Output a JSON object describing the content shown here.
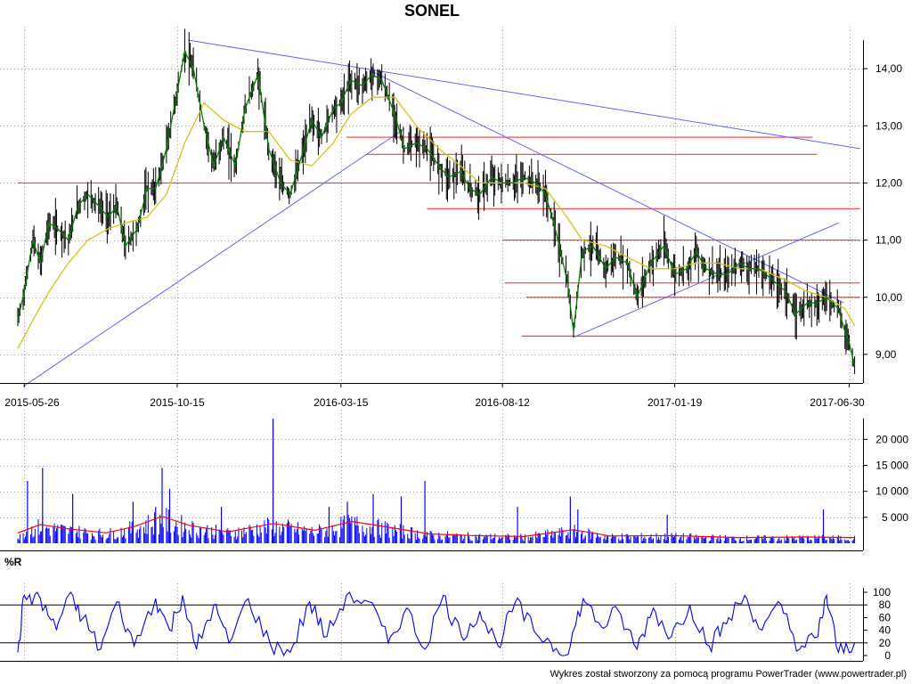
{
  "title": "SONEL",
  "footer": "Wykres został stworzony za pomocą programu PowerTrader (www.powertrader.pl)",
  "chart_data": [
    {
      "type": "line",
      "panel": "price",
      "title": "SONEL",
      "date_labels": [
        "2015-05-26",
        "2015-10-15",
        "2016-03-15",
        "2016-08-12",
        "2017-01-19",
        "2017-06-30"
      ],
      "ylim": [
        8.5,
        14.5
      ],
      "yticks": [
        9,
        10,
        11,
        12,
        13,
        14
      ],
      "ytick_labels": [
        "9,00",
        "10,00",
        "11,00",
        "12,00",
        "13,00",
        "14,00"
      ],
      "grid": true,
      "colors": {
        "price": "#008000",
        "bars": "#000000",
        "ma": "#d4c414",
        "trendlines": "#6464ff",
        "levels": "#ff3c3c"
      },
      "series": [
        {
          "role": "price",
          "points": [
            [
              "2015-05-20",
              9.6
            ],
            [
              "2015-05-26",
              10.1
            ],
            [
              "2015-06-03",
              11.0
            ],
            [
              "2015-06-10",
              10.6
            ],
            [
              "2015-06-18",
              11.3
            ],
            [
              "2015-06-26",
              11.2
            ],
            [
              "2015-07-06",
              11.0
            ],
            [
              "2015-07-15",
              11.6
            ],
            [
              "2015-07-24",
              11.8
            ],
            [
              "2015-08-03",
              11.6
            ],
            [
              "2015-08-12",
              11.4
            ],
            [
              "2015-08-20",
              11.6
            ],
            [
              "2015-08-28",
              10.9
            ],
            [
              "2015-09-08",
              11.2
            ],
            [
              "2015-09-17",
              11.9
            ],
            [
              "2015-09-25",
              11.9
            ],
            [
              "2015-10-05",
              12.6
            ],
            [
              "2015-10-15",
              13.6
            ],
            [
              "2015-10-22",
              14.3
            ],
            [
              "2015-10-30",
              14.0
            ],
            [
              "2015-11-09",
              13.0
            ],
            [
              "2015-11-18",
              12.3
            ],
            [
              "2015-11-27",
              12.8
            ],
            [
              "2015-12-08",
              12.3
            ],
            [
              "2015-12-17",
              13.3
            ],
            [
              "2015-12-29",
              13.9
            ],
            [
              "2016-01-08",
              12.6
            ],
            [
              "2016-01-19",
              12.0
            ],
            [
              "2016-01-28",
              11.8
            ],
            [
              "2016-02-08",
              12.5
            ],
            [
              "2016-02-17",
              13.1
            ],
            [
              "2016-02-26",
              12.8
            ],
            [
              "2016-03-08",
              13.3
            ],
            [
              "2016-03-15",
              13.4
            ],
            [
              "2016-03-24",
              13.8
            ],
            [
              "2016-04-04",
              13.7
            ],
            [
              "2016-04-13",
              13.9
            ],
            [
              "2016-04-22",
              13.8
            ],
            [
              "2016-05-04",
              13.2
            ],
            [
              "2016-05-13",
              12.6
            ],
            [
              "2016-05-24",
              12.7
            ],
            [
              "2016-06-03",
              12.6
            ],
            [
              "2016-06-14",
              12.3
            ],
            [
              "2016-06-23",
              12.1
            ],
            [
              "2016-07-04",
              12.2
            ],
            [
              "2016-07-13",
              11.9
            ],
            [
              "2016-07-22",
              11.8
            ],
            [
              "2016-08-02",
              12.1
            ],
            [
              "2016-08-12",
              12.0
            ],
            [
              "2016-08-22",
              12.0
            ],
            [
              "2016-09-01",
              12.1
            ],
            [
              "2016-09-12",
              12.0
            ],
            [
              "2016-09-21",
              11.8
            ],
            [
              "2016-09-30",
              11.2
            ],
            [
              "2016-10-11",
              10.3
            ],
            [
              "2016-10-17",
              9.4
            ],
            [
              "2016-10-25",
              10.8
            ],
            [
              "2016-11-04",
              10.9
            ],
            [
              "2016-11-16",
              10.5
            ],
            [
              "2016-11-25",
              10.7
            ],
            [
              "2016-12-06",
              10.6
            ],
            [
              "2016-12-15",
              10.0
            ],
            [
              "2016-12-28",
              10.6
            ],
            [
              "2017-01-09",
              10.9
            ],
            [
              "2017-01-19",
              10.4
            ],
            [
              "2017-01-30",
              10.5
            ],
            [
              "2017-02-08",
              10.8
            ],
            [
              "2017-02-17",
              10.5
            ],
            [
              "2017-02-28",
              10.4
            ],
            [
              "2017-03-09",
              10.4
            ],
            [
              "2017-03-20",
              10.6
            ],
            [
              "2017-03-29",
              10.5
            ],
            [
              "2017-04-07",
              10.5
            ],
            [
              "2017-04-20",
              10.3
            ],
            [
              "2017-05-02",
              10.1
            ],
            [
              "2017-05-11",
              9.7
            ],
            [
              "2017-05-22",
              9.9
            ],
            [
              "2017-05-31",
              9.9
            ],
            [
              "2017-06-09",
              10.0
            ],
            [
              "2017-06-20",
              9.8
            ],
            [
              "2017-06-26",
              9.4
            ],
            [
              "2017-06-30",
              9.2
            ],
            [
              "2017-07-05",
              8.8
            ]
          ]
        },
        {
          "role": "moving-average",
          "points": [
            [
              "2015-05-20",
              9.1
            ],
            [
              "2015-06-03",
              9.6
            ],
            [
              "2015-06-18",
              10.1
            ],
            [
              "2015-07-06",
              10.6
            ],
            [
              "2015-07-24",
              11.0
            ],
            [
              "2015-08-12",
              11.2
            ],
            [
              "2015-08-28",
              11.3
            ],
            [
              "2015-09-17",
              11.4
            ],
            [
              "2015-10-05",
              11.8
            ],
            [
              "2015-10-22",
              12.7
            ],
            [
              "2015-11-09",
              13.4
            ],
            [
              "2015-11-27",
              13.1
            ],
            [
              "2015-12-17",
              12.9
            ],
            [
              "2016-01-08",
              12.9
            ],
            [
              "2016-01-28",
              12.4
            ],
            [
              "2016-02-17",
              12.3
            ],
            [
              "2016-03-08",
              12.7
            ],
            [
              "2016-03-24",
              13.2
            ],
            [
              "2016-04-13",
              13.5
            ],
            [
              "2016-05-04",
              13.5
            ],
            [
              "2016-05-24",
              13.0
            ],
            [
              "2016-06-14",
              12.6
            ],
            [
              "2016-07-04",
              12.3
            ],
            [
              "2016-07-22",
              12.0
            ],
            [
              "2016-08-12",
              12.0
            ],
            [
              "2016-09-01",
              12.0
            ],
            [
              "2016-09-21",
              11.9
            ],
            [
              "2016-10-11",
              11.4
            ],
            [
              "2016-10-25",
              11.0
            ],
            [
              "2016-11-16",
              10.9
            ],
            [
              "2016-12-06",
              10.7
            ],
            [
              "2016-12-28",
              10.5
            ],
            [
              "2017-01-19",
              10.5
            ],
            [
              "2017-02-08",
              10.6
            ],
            [
              "2017-02-28",
              10.6
            ],
            [
              "2017-03-20",
              10.5
            ],
            [
              "2017-04-07",
              10.5
            ],
            [
              "2017-05-02",
              10.3
            ],
            [
              "2017-05-22",
              10.1
            ],
            [
              "2017-06-09",
              10.0
            ],
            [
              "2017-06-26",
              9.8
            ],
            [
              "2017-07-05",
              9.5
            ]
          ]
        }
      ],
      "trendlines": [
        {
          "from": [
            "2015-05-26",
            8.45
          ],
          "to": [
            "2016-05-13",
            12.95
          ]
        },
        {
          "from": [
            "2015-10-25",
            14.5
          ],
          "to": [
            "2017-07-10",
            12.6
          ]
        },
        {
          "from": [
            "2016-04-13",
            13.95
          ],
          "to": [
            "2017-06-25",
            9.9
          ]
        },
        {
          "from": [
            "2016-10-17",
            9.3
          ],
          "to": [
            "2017-06-20",
            11.3
          ]
        }
      ],
      "levels": [
        {
          "value": 12.0,
          "from": "2015-05-20",
          "to": "2017-07-10"
        },
        {
          "value": 12.8,
          "from": "2016-03-20",
          "to": "2017-05-27"
        },
        {
          "value": 12.5,
          "from": "2016-04-08",
          "to": "2017-05-31"
        },
        {
          "value": 11.55,
          "from": "2016-06-03",
          "to": "2017-07-10"
        },
        {
          "value": 11.0,
          "from": "2016-08-12",
          "to": "2017-07-10"
        },
        {
          "value": 10.25,
          "from": "2016-08-14",
          "to": "2017-07-10"
        },
        {
          "value": 10.0,
          "from": "2016-09-03",
          "to": "2017-07-10"
        },
        {
          "value": 9.32,
          "from": "2016-08-30",
          "to": "2017-06-30"
        }
      ]
    },
    {
      "type": "bar",
      "panel": "volume",
      "ylim": [
        0,
        24000
      ],
      "yticks": [
        5000,
        10000,
        15000,
        20000
      ],
      "ytick_labels": [
        "5 000",
        "10 000",
        "15 000",
        "20 000"
      ],
      "colors": {
        "bars": "#0000ff",
        "avg": "#ff0000"
      },
      "spikes": [
        [
          "2015-05-29",
          12000
        ],
        [
          "2015-06-12",
          14500
        ],
        [
          "2015-07-10",
          9500
        ],
        [
          "2015-09-04",
          8000
        ],
        [
          "2015-09-25",
          7000
        ],
        [
          "2015-10-01",
          14500
        ],
        [
          "2015-10-08",
          10500
        ],
        [
          "2015-11-25",
          7000
        ],
        [
          "2016-01-12",
          24000
        ],
        [
          "2016-03-04",
          7000
        ],
        [
          "2016-03-21",
          8000
        ],
        [
          "2016-04-14",
          9500
        ],
        [
          "2016-05-10",
          9000
        ],
        [
          "2016-06-01",
          12000
        ],
        [
          "2016-08-26",
          7000
        ],
        [
          "2016-10-14",
          9000
        ],
        [
          "2016-10-21",
          6500
        ],
        [
          "2017-01-12",
          5500
        ],
        [
          "2017-06-06",
          6500
        ]
      ],
      "average": [
        [
          "2015-05-20",
          2000
        ],
        [
          "2015-06-10",
          3600
        ],
        [
          "2015-07-05",
          2800
        ],
        [
          "2015-08-10",
          2000
        ],
        [
          "2015-09-05",
          3200
        ],
        [
          "2015-10-01",
          5200
        ],
        [
          "2015-10-25",
          3500
        ],
        [
          "2015-12-01",
          2200
        ],
        [
          "2016-01-12",
          3800
        ],
        [
          "2016-02-20",
          2500
        ],
        [
          "2016-03-25",
          4200
        ],
        [
          "2016-05-01",
          3000
        ],
        [
          "2016-06-05",
          1800
        ],
        [
          "2016-07-15",
          1500
        ],
        [
          "2016-09-01",
          1300
        ],
        [
          "2016-10-17",
          2600
        ],
        [
          "2016-11-20",
          1400
        ],
        [
          "2017-01-15",
          1500
        ],
        [
          "2017-03-20",
          1100
        ],
        [
          "2017-05-20",
          1200
        ],
        [
          "2017-07-05",
          1100
        ]
      ]
    },
    {
      "type": "line",
      "panel": "williams-r",
      "label": "%R",
      "ylim": [
        0,
        100
      ],
      "yticks": [
        0,
        20,
        40,
        60,
        80,
        100
      ],
      "ytick_labels": [
        "0",
        "20",
        "40",
        "60",
        "80",
        "100"
      ],
      "reference_lines": [
        20,
        80
      ],
      "colors": {
        "line": "#0000ff"
      },
      "points": [
        [
          "2015-05-20",
          5
        ],
        [
          "2015-05-26",
          95
        ],
        [
          "2015-06-10",
          90
        ],
        [
          "2015-06-25",
          40
        ],
        [
          "2015-07-06",
          95
        ],
        [
          "2015-07-20",
          60
        ],
        [
          "2015-08-05",
          10
        ],
        [
          "2015-08-20",
          85
        ],
        [
          "2015-09-05",
          15
        ],
        [
          "2015-09-25",
          90
        ],
        [
          "2015-10-08",
          40
        ],
        [
          "2015-10-20",
          95
        ],
        [
          "2015-11-02",
          10
        ],
        [
          "2015-11-18",
          80
        ],
        [
          "2015-12-02",
          20
        ],
        [
          "2015-12-20",
          90
        ],
        [
          "2016-01-10",
          15
        ],
        [
          "2016-01-28",
          5
        ],
        [
          "2016-02-15",
          85
        ],
        [
          "2016-03-02",
          30
        ],
        [
          "2016-03-20",
          95
        ],
        [
          "2016-04-10",
          85
        ],
        [
          "2016-04-28",
          20
        ],
        [
          "2016-05-15",
          75
        ],
        [
          "2016-06-01",
          10
        ],
        [
          "2016-06-18",
          95
        ],
        [
          "2016-07-05",
          30
        ],
        [
          "2016-07-22",
          70
        ],
        [
          "2016-08-08",
          15
        ],
        [
          "2016-08-24",
          85
        ],
        [
          "2016-09-10",
          40
        ],
        [
          "2016-09-26",
          20
        ],
        [
          "2016-10-12",
          2
        ],
        [
          "2016-10-26",
          90
        ],
        [
          "2016-11-12",
          45
        ],
        [
          "2016-11-28",
          70
        ],
        [
          "2016-12-15",
          10
        ],
        [
          "2016-12-30",
          75
        ],
        [
          "2017-01-16",
          30
        ],
        [
          "2017-02-02",
          80
        ],
        [
          "2017-02-20",
          15
        ],
        [
          "2017-03-08",
          50
        ],
        [
          "2017-03-25",
          95
        ],
        [
          "2017-04-10",
          40
        ],
        [
          "2017-04-28",
          80
        ],
        [
          "2017-05-15",
          10
        ],
        [
          "2017-06-01",
          30
        ],
        [
          "2017-06-09",
          95
        ],
        [
          "2017-06-20",
          5
        ],
        [
          "2017-07-05",
          20
        ]
      ]
    }
  ]
}
